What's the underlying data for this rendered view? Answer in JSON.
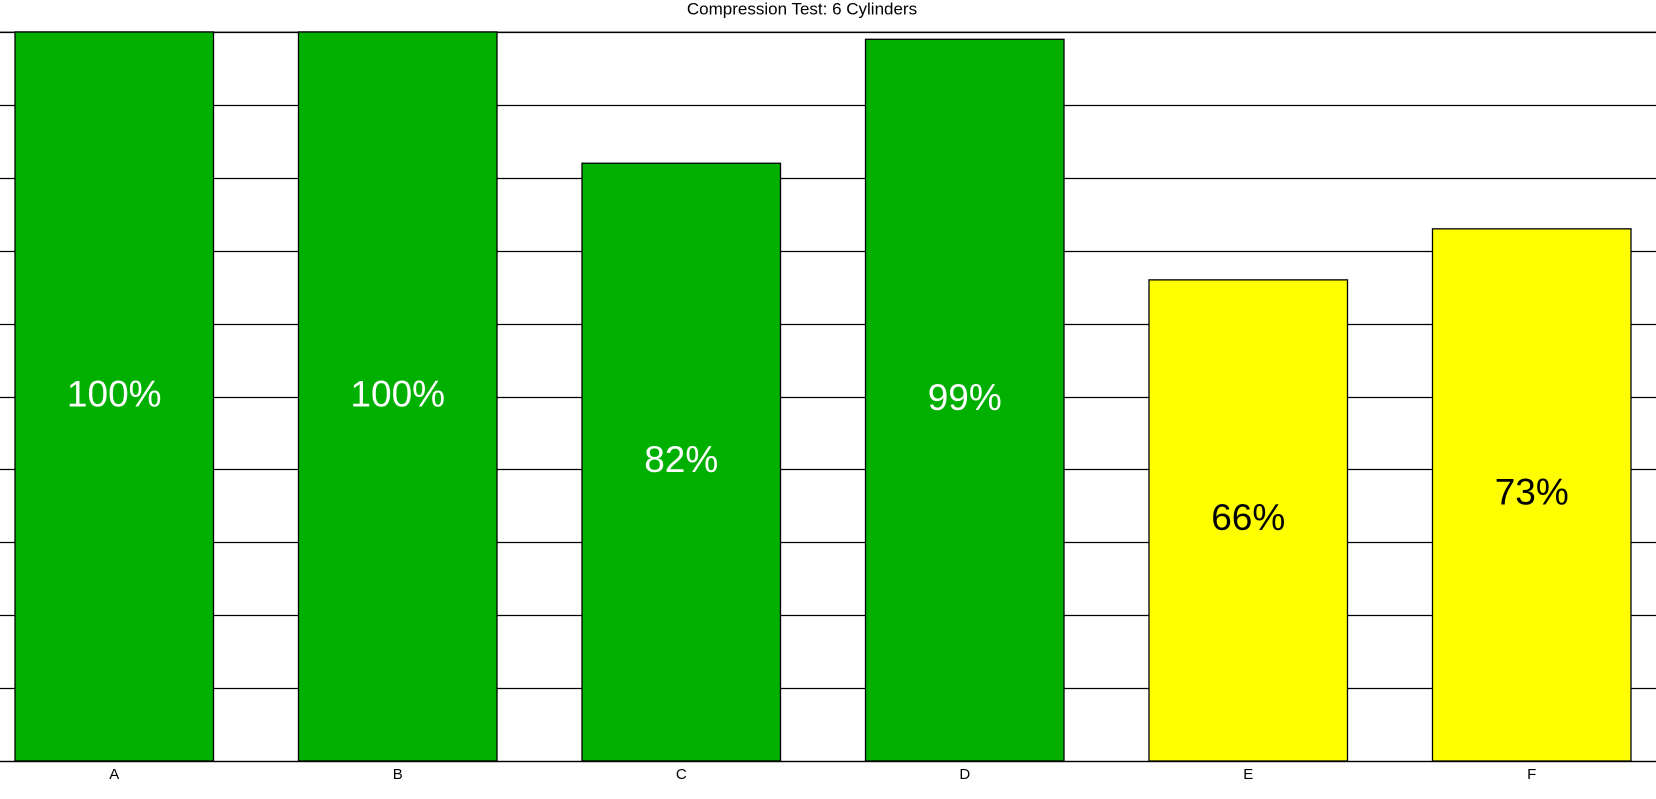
{
  "chart_data": {
    "type": "bar",
    "title": "Compression Test: 6 Cylinders",
    "categories": [
      "A",
      "B",
      "C",
      "D",
      "E",
      "F"
    ],
    "values": [
      100,
      100,
      82,
      99,
      66,
      73
    ],
    "value_labels": [
      "100%",
      "100%",
      "82%",
      "99%",
      "66%",
      "73%"
    ],
    "colors": [
      "#00b000",
      "#00b000",
      "#00b000",
      "#00b000",
      "#ffff00",
      "#ffff00"
    ],
    "ylim": [
      0,
      100
    ],
    "yticks": [
      0,
      10,
      20,
      30,
      40,
      50,
      60,
      70,
      80,
      90,
      100
    ],
    "grid": true
  }
}
